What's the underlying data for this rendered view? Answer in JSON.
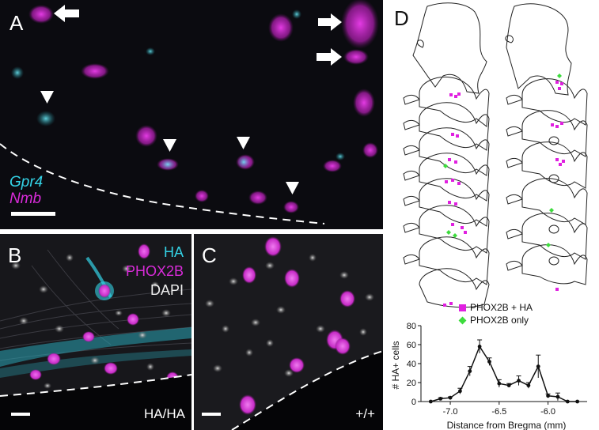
{
  "panels": {
    "a": {
      "label": "A",
      "legend_gene1": "Gpr4",
      "legend_gene2": "Nmb"
    },
    "b": {
      "label": "B",
      "stain1": "HA",
      "stain2": "PHOX2B",
      "stain3": "DAPI",
      "genotype": "HA/HA"
    },
    "c": {
      "label": "C",
      "genotype": "+/+"
    },
    "d": {
      "label": "D",
      "legend_items": [
        {
          "label": "PHOX2B + HA",
          "marker": "square",
          "color": "#e020e0"
        },
        {
          "label": "PHOX2B only",
          "marker": "diamond",
          "color": "#3ddc3d"
        }
      ]
    }
  },
  "colors": {
    "cyan": "#34d3e6",
    "magenta": "#d92bd9",
    "green": "#3ddc3d"
  },
  "chart_data": {
    "type": "line",
    "title": "",
    "xlabel": "Distance from Bregma (mm)",
    "ylabel": "# HA+ cells",
    "x_tick_labels": [
      "-7.0",
      "-6.5",
      "-6.0"
    ],
    "x_ticks": [
      -7.0,
      -6.5,
      -6.0
    ],
    "y_tick_labels": [
      "0",
      "20",
      "40",
      "60",
      "80"
    ],
    "y_ticks": [
      0,
      20,
      40,
      60,
      80
    ],
    "xlim": [
      -7.3,
      -5.6
    ],
    "ylim": [
      0,
      80
    ],
    "x_reversed": true,
    "series": [
      {
        "x": [
          -7.2,
          -7.1,
          -7.0,
          -6.9,
          -6.8,
          -6.7,
          -6.6,
          -6.5,
          -6.4,
          -6.3,
          -6.2,
          -6.1,
          -6.0,
          -5.9,
          -5.8,
          -5.7
        ],
        "y": [
          0,
          3,
          4,
          11,
          32,
          58,
          42,
          19,
          17,
          22,
          17,
          37,
          6,
          5,
          0,
          0
        ],
        "err": [
          0,
          1,
          1,
          3,
          5,
          7,
          4,
          4,
          2,
          5,
          3,
          12,
          2,
          4,
          0,
          0
        ]
      }
    ]
  }
}
